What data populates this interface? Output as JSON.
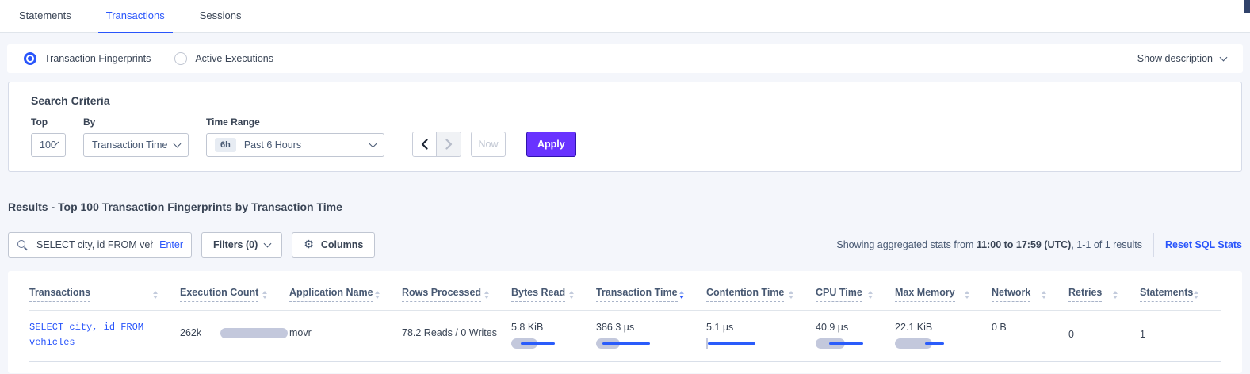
{
  "tabs": [
    {
      "label": "Statements",
      "active": false
    },
    {
      "label": "Transactions",
      "active": true
    },
    {
      "label": "Sessions",
      "active": false
    }
  ],
  "view_toggle": {
    "options": [
      {
        "label": "Transaction Fingerprints",
        "selected": true
      },
      {
        "label": "Active Executions",
        "selected": false
      }
    ],
    "show_description_label": "Show description"
  },
  "search_criteria": {
    "title": "Search Criteria",
    "top": {
      "label": "Top",
      "value": "100"
    },
    "by": {
      "label": "By",
      "value": "Transaction Time"
    },
    "time_range": {
      "label": "Time Range",
      "badge": "6h",
      "value": "Past 6 Hours"
    },
    "now_label": "Now",
    "apply_label": "Apply"
  },
  "results": {
    "heading": "Results - Top 100 Transaction Fingerprints by Transaction Time",
    "search": {
      "value": "SELECT city, id FROM vehicles W",
      "enter_label": "Enter"
    },
    "filters_label": "Filters (0)",
    "columns_label": "Columns",
    "stats_prefix": "Showing aggregated stats from ",
    "stats_range": "11:00 to 17:59 (UTC)",
    "stats_suffix": ", 1-1 of 1 results",
    "reset_link": "Reset SQL Stats"
  },
  "table": {
    "columns": [
      "Transactions",
      "Execution Count",
      "Application Name",
      "Rows Processed",
      "Bytes Read",
      "Transaction Time",
      "Contention Time",
      "CPU Time",
      "Max Memory",
      "Network",
      "Retries",
      "Statements"
    ],
    "sorted_column": "Transaction Time",
    "sort_direction": "desc",
    "row": {
      "transaction": "SELECT city, id FROM vehicles",
      "execution_count": "262k",
      "application_name": "movr",
      "rows_processed": "78.2 Reads / 0 Writes",
      "bytes_read": "5.8 KiB",
      "transaction_time": "386.3 µs",
      "contention_time": "5.1 µs",
      "cpu_time": "40.9 µs",
      "max_memory": "22.1 KiB",
      "network": "0 B",
      "retries": "0",
      "statements": "1"
    },
    "bars": {
      "execution_count": {
        "bar": 85
      },
      "bytes_read": {
        "bar": 33,
        "line": [
          12,
          55
        ]
      },
      "transaction_time": {
        "bar": 30,
        "line": [
          8,
          68
        ]
      },
      "contention_time": {
        "bar": 2,
        "line": [
          2,
          62
        ]
      },
      "cpu_time": {
        "bar": 37,
        "line": [
          17,
          60
        ]
      },
      "max_memory": {
        "bar": 47,
        "line": [
          38,
          62
        ]
      }
    }
  },
  "colors": {
    "accent_blue": "#2955fb",
    "apply_purple": "#6933ff",
    "bar_gray": "#c3c8dc",
    "page_background": "#f4f6fb"
  }
}
